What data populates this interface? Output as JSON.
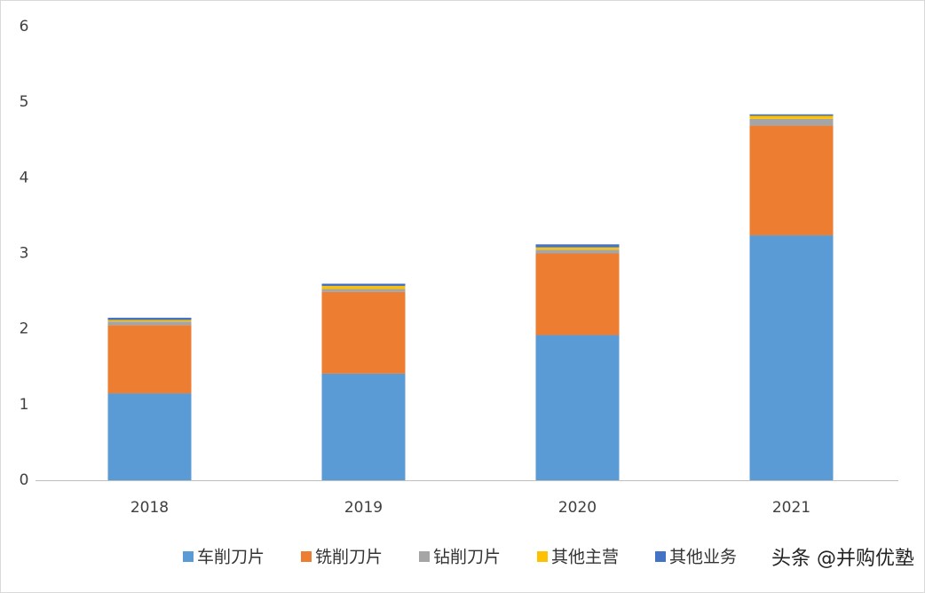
{
  "chart_data": {
    "type": "stacked-bar",
    "categories": [
      "2018",
      "2019",
      "2020",
      "2021"
    ],
    "series": [
      {
        "name": "车削刀片",
        "color": "#5b9bd5",
        "values": [
          1.15,
          1.41,
          1.92,
          3.24
        ]
      },
      {
        "name": "铣削刀片",
        "color": "#ed7d31",
        "values": [
          0.9,
          1.08,
          1.08,
          1.45
        ]
      },
      {
        "name": "钻削刀片",
        "color": "#a5a5a5",
        "values": [
          0.05,
          0.04,
          0.05,
          0.09
        ]
      },
      {
        "name": "其他主营",
        "color": "#ffc000",
        "values": [
          0.02,
          0.04,
          0.03,
          0.04
        ]
      },
      {
        "name": "其他业务",
        "color": "#4472c4",
        "values": [
          0.03,
          0.03,
          0.04,
          0.02
        ]
      }
    ],
    "ylim": [
      0,
      6
    ],
    "yticks": [
      0,
      1,
      2,
      3,
      4,
      5,
      6
    ],
    "grid": false,
    "legend": "bottom",
    "watermark": "头条 @并购优塾"
  }
}
